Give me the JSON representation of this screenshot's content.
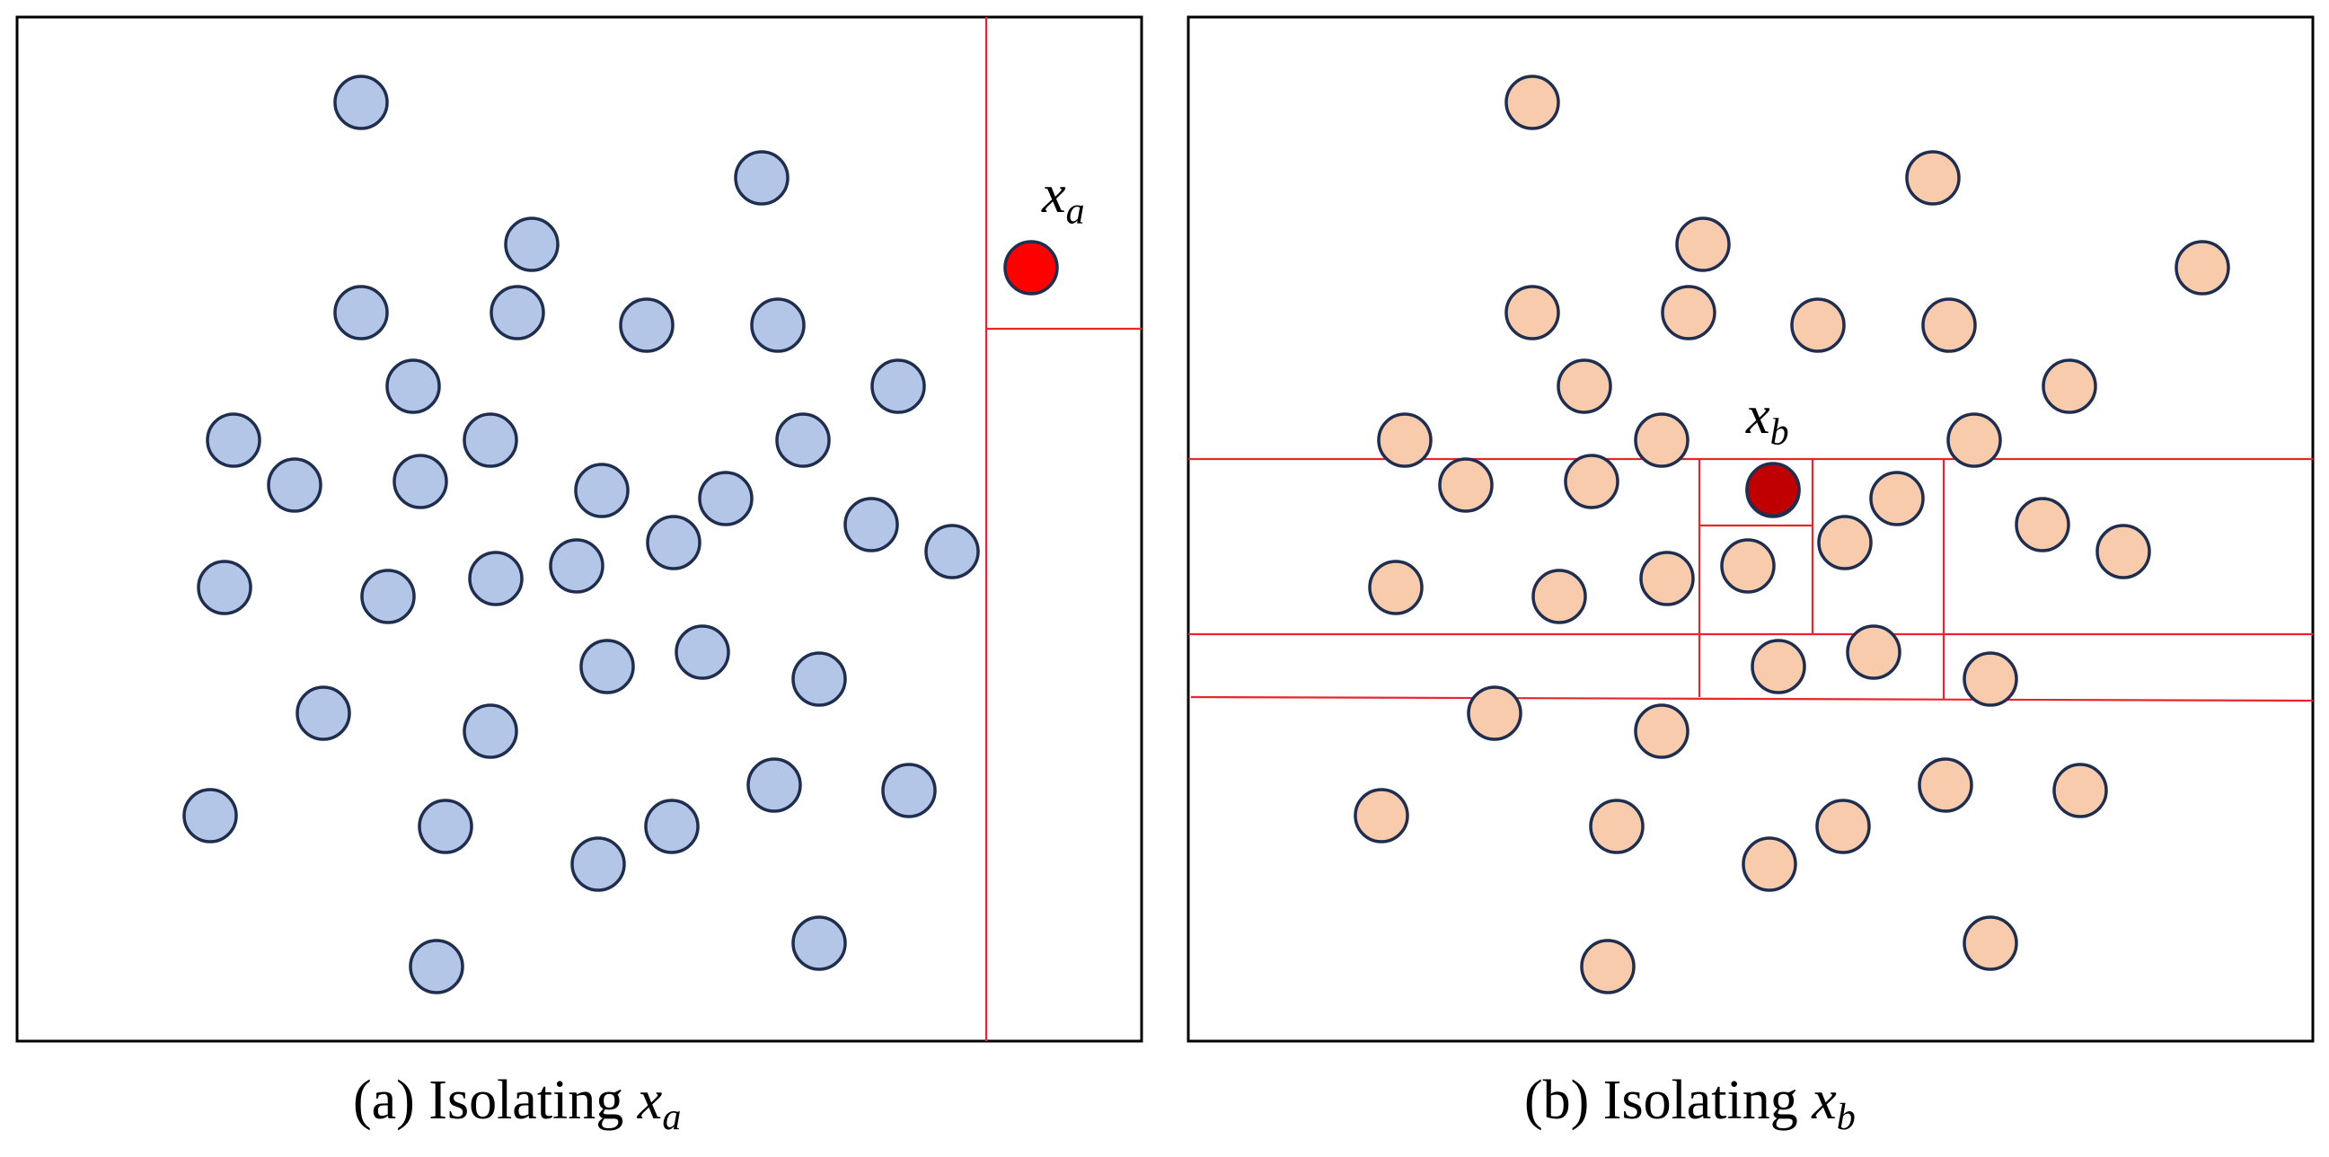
{
  "colors": {
    "point_a": "#b3c6e7",
    "point_b": "#f8cbad",
    "outlier_a": "#ff0000",
    "outlier_b": "#c00000",
    "partition_line": "#e8262d",
    "point_stroke": "#1f2d4e"
  },
  "panel_a": {
    "caption_prefix": "(a) Isolating ",
    "caption_var": "x",
    "caption_sub": "a",
    "outlier_var": "x",
    "outlier_sub": "a"
  },
  "panel_b": {
    "caption_prefix": "(b) Isolating ",
    "caption_var": "x",
    "caption_sub": "b",
    "outlier_var": "x",
    "outlier_sub": "b"
  }
}
